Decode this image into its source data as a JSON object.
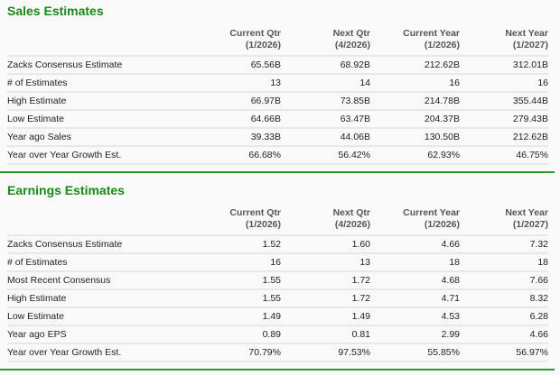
{
  "sales": {
    "title": "Sales Estimates",
    "columns": [
      {
        "name": "Current Qtr",
        "period": "(1/2026)"
      },
      {
        "name": "Next Qtr",
        "period": "(4/2026)"
      },
      {
        "name": "Current Year",
        "period": "(1/2026)"
      },
      {
        "name": "Next Year",
        "period": "(1/2027)"
      }
    ],
    "rows": [
      {
        "label": "Zacks Consensus Estimate",
        "values": [
          "65.56B",
          "68.92B",
          "212.62B",
          "312.01B"
        ]
      },
      {
        "label": "# of Estimates",
        "values": [
          "13",
          "14",
          "16",
          "16"
        ]
      },
      {
        "label": "High Estimate",
        "values": [
          "66.97B",
          "73.85B",
          "214.78B",
          "355.44B"
        ]
      },
      {
        "label": "Low Estimate",
        "values": [
          "64.66B",
          "63.47B",
          "204.37B",
          "279.43B"
        ]
      },
      {
        "label": "Year ago Sales",
        "values": [
          "39.33B",
          "44.06B",
          "130.50B",
          "212.62B"
        ]
      },
      {
        "label": "Year over Year Growth Est.",
        "values": [
          "66.68%",
          "56.42%",
          "62.93%",
          "46.75%"
        ]
      }
    ]
  },
  "earnings": {
    "title": "Earnings Estimates",
    "columns": [
      {
        "name": "Current Qtr",
        "period": "(1/2026)"
      },
      {
        "name": "Next Qtr",
        "period": "(4/2026)"
      },
      {
        "name": "Current Year",
        "period": "(1/2026)"
      },
      {
        "name": "Next Year",
        "period": "(1/2027)"
      }
    ],
    "rows": [
      {
        "label": "Zacks Consensus Estimate",
        "values": [
          "1.52",
          "1.60",
          "4.66",
          "7.32"
        ]
      },
      {
        "label": "# of Estimates",
        "values": [
          "16",
          "13",
          "18",
          "18"
        ]
      },
      {
        "label": "Most Recent Consensus",
        "values": [
          "1.55",
          "1.72",
          "4.68",
          "7.66"
        ]
      },
      {
        "label": "High Estimate",
        "values": [
          "1.55",
          "1.72",
          "4.71",
          "8.32"
        ]
      },
      {
        "label": "Low Estimate",
        "values": [
          "1.49",
          "1.49",
          "4.53",
          "6.28"
        ]
      },
      {
        "label": "Year ago EPS",
        "values": [
          "0.89",
          "0.81",
          "2.99",
          "4.66"
        ]
      },
      {
        "label": "Year over Year Growth Est.",
        "values": [
          "70.79%",
          "97.53%",
          "55.85%",
          "56.97%"
        ]
      }
    ]
  }
}
